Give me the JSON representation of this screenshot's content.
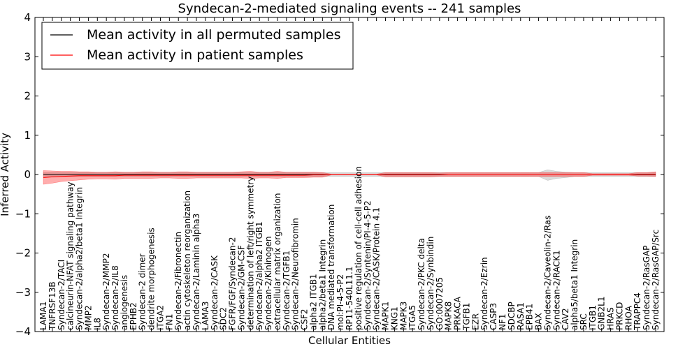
{
  "chart_data": {
    "type": "line",
    "title": "Syndecan-2-mediated signaling events -- 241 samples",
    "xlabel": "Cellular Entities",
    "ylabel": "Inferred Activity",
    "ylim": [
      -4,
      4
    ],
    "yticks": [
      -4,
      -3,
      -2,
      -1,
      0,
      1,
      2,
      3,
      4
    ],
    "grid": false,
    "legend_position": "top-left",
    "categories": [
      "LAMA1",
      "TNFRSF13B",
      "Syndecan-2/TACI",
      "calcineurin-NFAT signaling pathway",
      "Syndecan-2/alpha2/beta1 Integrin",
      "MMP2",
      "IL8",
      "Syndecan-2/MMP2",
      "Syndecan-2/IL8",
      "angiogenesis",
      "EPHB2",
      "Syndecan-2 dimer",
      "dendrite morphogenesis",
      "ITGA2",
      "FN1",
      "Syndecan-2/Fibronectin",
      "actin cytoskeleton reorganization",
      "Syndecan-2/Laminin alpha3",
      "LAMA3",
      "Syndecan-2/CASK",
      "SDC2",
      "FGFR/FGF/Syndecan-2",
      "Syndecan-2/GM-CSF",
      "determination of left/right symmetry",
      "Syndecan-2/alpha2 ITGB1",
      "Syndecan-2/Kininogen",
      "extracellular matrix organization",
      "Syndecan-2/TGFB1",
      "Syndecan-2/Neurofibromin",
      "CSF2",
      "alpha2 ITGB1",
      "alpha2/beta1 Integrin",
      "DNA mediated transformation",
      "mol:PI-4-5-P2",
      "RP11-540L11.1",
      "positive regulation of cell-cell adhesion",
      "Syndecan-2/Syntenin/PI-4-5-P2",
      "Syndecan-2/CASK/Protein 4.1",
      "MAPK1",
      "KNG1",
      "MAPK3",
      "ITGA5",
      "Syndecan-2/PKC delta",
      "Syndecan-2/Synbindin",
      "GO:0007205",
      "MAPK8",
      "PRKACA",
      "TGFB1",
      "EZR",
      "Syndecan-2/Ezrin",
      "CASP3",
      "NF1",
      "SDCBP",
      "RASA1",
      "EPB41",
      "BAX",
      "Syndecan-2/Caveolin-2/Ras",
      "Syndecan-2/RACK1",
      "CAV2",
      "alpha5/beta1 Integrin",
      "SRC",
      "ITGB1",
      "GNB2L1",
      "HRAS",
      "PRKCD",
      "RHOA",
      "TRAPPC4",
      "Syndecan-2/RasGAP",
      "Syndecan-2/RasGAP/Src"
    ],
    "series": [
      {
        "name": "Mean activity in all permuted samples",
        "color": "#000000",
        "values": [
          0.0,
          0.0,
          0.0,
          0.0,
          0.0,
          0.0,
          0.0,
          0.0,
          0.0,
          0.0,
          0.0,
          0.0,
          0.0,
          0.0,
          0.0,
          0.0,
          0.0,
          0.0,
          0.0,
          0.0,
          0.0,
          0.0,
          0.0,
          0.0,
          0.0,
          0.0,
          0.0,
          0.0,
          0.0,
          0.0,
          0.0,
          0.0,
          0.0,
          0.0,
          0.0,
          0.0,
          0.0,
          0.0,
          0.0,
          0.0,
          0.0,
          0.0,
          0.0,
          0.0,
          0.0,
          0.0,
          0.0,
          0.0,
          0.0,
          0.0,
          0.0,
          0.0,
          0.0,
          0.0,
          0.0,
          0.0,
          0.0,
          0.0,
          0.0,
          0.0,
          0.0,
          0.0,
          0.0,
          0.0,
          0.0,
          0.0,
          0.0,
          0.0,
          0.0
        ],
        "band_upper": [
          0.05,
          0.05,
          0.05,
          0.05,
          0.05,
          0.05,
          0.05,
          0.05,
          0.05,
          0.05,
          0.05,
          0.05,
          0.05,
          0.05,
          0.05,
          0.05,
          0.05,
          0.05,
          0.05,
          0.05,
          0.05,
          0.05,
          0.05,
          0.05,
          0.05,
          0.05,
          0.05,
          0.05,
          0.05,
          0.05,
          0.05,
          0.05,
          0.05,
          0.05,
          0.05,
          0.05,
          0.05,
          0.05,
          0.05,
          0.05,
          0.05,
          0.05,
          0.05,
          0.05,
          0.05,
          0.05,
          0.05,
          0.05,
          0.05,
          0.05,
          0.05,
          0.05,
          0.05,
          0.05,
          0.05,
          0.05,
          0.12,
          0.08,
          0.06,
          0.05,
          0.05,
          0.05,
          0.05,
          0.05,
          0.05,
          0.05,
          0.05,
          0.05,
          0.05
        ],
        "band_lower": [
          -0.05,
          -0.05,
          -0.05,
          -0.05,
          -0.05,
          -0.05,
          -0.05,
          -0.05,
          -0.05,
          -0.05,
          -0.05,
          -0.05,
          -0.05,
          -0.05,
          -0.05,
          -0.05,
          -0.05,
          -0.05,
          -0.05,
          -0.05,
          -0.05,
          -0.05,
          -0.05,
          -0.05,
          -0.05,
          -0.05,
          -0.05,
          -0.05,
          -0.05,
          -0.05,
          -0.05,
          -0.05,
          -0.05,
          -0.05,
          -0.05,
          -0.05,
          -0.05,
          -0.05,
          -0.05,
          -0.05,
          -0.05,
          -0.05,
          -0.05,
          -0.05,
          -0.05,
          -0.05,
          -0.05,
          -0.05,
          -0.05,
          -0.05,
          -0.05,
          -0.05,
          -0.05,
          -0.05,
          -0.05,
          -0.05,
          -0.15,
          -0.1,
          -0.08,
          -0.05,
          -0.05,
          -0.05,
          -0.05,
          -0.05,
          -0.05,
          -0.05,
          -0.05,
          -0.05,
          -0.05
        ]
      },
      {
        "name": "Mean activity in patient samples",
        "color": "#ff0000",
        "values": [
          -0.08,
          -0.06,
          -0.05,
          -0.04,
          -0.03,
          -0.03,
          -0.03,
          -0.03,
          -0.03,
          -0.02,
          -0.02,
          -0.02,
          -0.02,
          -0.02,
          -0.02,
          -0.02,
          -0.02,
          -0.02,
          -0.02,
          -0.02,
          -0.02,
          -0.02,
          -0.02,
          -0.02,
          -0.02,
          -0.02,
          -0.02,
          -0.02,
          -0.02,
          -0.02,
          -0.01,
          -0.01,
          0.0,
          0.0,
          0.0,
          0.0,
          0.0,
          0.0,
          -0.01,
          -0.01,
          -0.01,
          -0.01,
          -0.01,
          -0.01,
          -0.01,
          0.0,
          0.0,
          0.0,
          0.0,
          0.0,
          0.0,
          0.0,
          0.0,
          0.0,
          0.0,
          0.0,
          0.0,
          0.0,
          0.0,
          0.0,
          0.0,
          0.0,
          0.0,
          0.0,
          0.0,
          0.0,
          0.01,
          0.01,
          0.01
        ],
        "band_upper": [
          0.1,
          0.09,
          0.08,
          0.08,
          0.07,
          0.07,
          0.06,
          0.06,
          0.07,
          0.06,
          0.06,
          0.07,
          0.07,
          0.06,
          0.06,
          0.07,
          0.07,
          0.06,
          0.06,
          0.06,
          0.06,
          0.06,
          0.07,
          0.08,
          0.06,
          0.06,
          0.08,
          0.06,
          0.06,
          0.06,
          0.06,
          0.05,
          0.01,
          0.01,
          0.01,
          0.01,
          0.01,
          0.01,
          0.05,
          0.05,
          0.05,
          0.05,
          0.05,
          0.05,
          0.04,
          0.05,
          0.05,
          0.05,
          0.05,
          0.05,
          0.05,
          0.05,
          0.05,
          0.05,
          0.05,
          0.05,
          0.05,
          0.05,
          0.05,
          0.05,
          0.05,
          0.02,
          0.02,
          0.02,
          0.02,
          0.02,
          0.05,
          0.05,
          0.07
        ],
        "band_lower": [
          -0.25,
          -0.22,
          -0.18,
          -0.16,
          -0.14,
          -0.12,
          -0.11,
          -0.11,
          -0.12,
          -0.1,
          -0.1,
          -0.1,
          -0.1,
          -0.09,
          -0.09,
          -0.1,
          -0.1,
          -0.09,
          -0.09,
          -0.09,
          -0.09,
          -0.09,
          -0.09,
          -0.1,
          -0.09,
          -0.09,
          -0.1,
          -0.08,
          -0.08,
          -0.08,
          -0.07,
          -0.07,
          -0.01,
          -0.01,
          -0.01,
          -0.01,
          -0.01,
          -0.01,
          -0.06,
          -0.06,
          -0.06,
          -0.06,
          -0.06,
          -0.06,
          -0.05,
          -0.05,
          -0.05,
          -0.05,
          -0.05,
          -0.05,
          -0.05,
          -0.05,
          -0.05,
          -0.05,
          -0.05,
          -0.05,
          -0.05,
          -0.05,
          -0.05,
          -0.05,
          -0.05,
          -0.02,
          -0.02,
          -0.02,
          -0.02,
          -0.02,
          -0.04,
          -0.04,
          -0.05
        ]
      }
    ]
  }
}
